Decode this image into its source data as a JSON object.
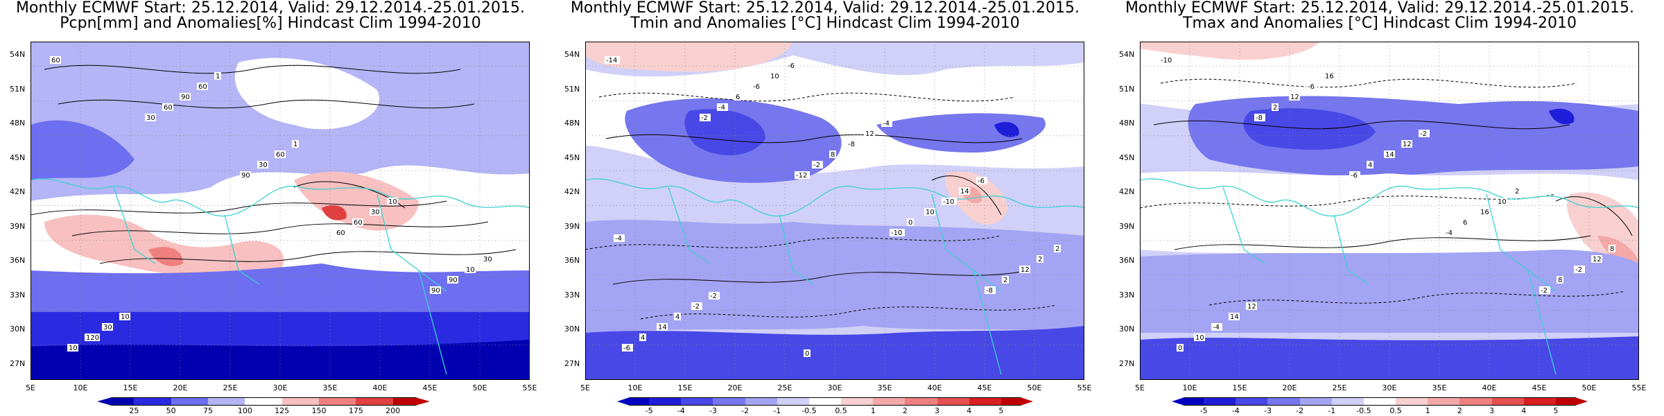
{
  "panels": [
    {
      "title_line1": "Monthly ECMWF Start: 25.12.2014, Valid: 29.12.2014.-25.01.2015.",
      "title_line2": "Pcpn[mm] and Anomalies[%] Hindcast Clim 1994-2010",
      "colorbar_labels": [
        "25",
        "50",
        "75",
        "100",
        "125",
        "150",
        "175",
        "200"
      ],
      "colorbar_colors": [
        "#0000b0",
        "#2a2ae0",
        "#6e6ef0",
        "#b4b4f6",
        "#ffffff",
        "#f8c0c0",
        "#f08080",
        "#e04040",
        "#c00000"
      ],
      "contour_labels": [
        "60",
        "30",
        "90",
        "60",
        "90",
        "10",
        "60",
        "30",
        "60",
        "90",
        "120",
        "90",
        "60",
        "30",
        "10",
        "30",
        "60",
        "1",
        "10",
        "30",
        "10",
        "1"
      ]
    },
    {
      "title_line1": "Monthly ECMWF Start: 25.12.2014, Valid: 29.12.2014.-25.01.2015.",
      "title_line2": "Tmin and Anomalies [°C] Hindcast Clim 1994-2010",
      "colorbar_labels": [
        "-5",
        "-4",
        "-3",
        "-2",
        "-1",
        "-0.5",
        "0.5",
        "1",
        "2",
        "3",
        "4",
        "5"
      ],
      "colorbar_colors": [
        "#0000c0",
        "#1e1ed8",
        "#4848e6",
        "#7676ee",
        "#a4a4f4",
        "#d0d0f8",
        "#ffffff",
        "#f8d0d0",
        "#f4a8a8",
        "#ee8080",
        "#e65050",
        "#d82020",
        "#c00000"
      ],
      "contour_labels": [
        "-14",
        "-2",
        "-12",
        "-10",
        "-8",
        "-6",
        "-4",
        "-2",
        "0",
        "2",
        "4",
        "6",
        "8",
        "10",
        "12",
        "14",
        "-6",
        "-8",
        "-10",
        "2",
        "4",
        "10",
        "12",
        "14",
        "2",
        "-2",
        "-6",
        "-4",
        "-6",
        "-4",
        "-2",
        "0"
      ]
    },
    {
      "title_line1": "Monthly ECMWF Start: 25.12.2014, Valid: 29.12.2014.-25.01.2015.",
      "title_line2": "Tmax and Anomalies [°C] Hindcast Clim 1994-2010",
      "colorbar_labels": [
        "-5",
        "-4",
        "-3",
        "-2",
        "-1",
        "-0.5",
        "0.5",
        "1",
        "2",
        "3",
        "4",
        "5"
      ],
      "colorbar_colors": [
        "#0000c0",
        "#1e1ed8",
        "#4848e6",
        "#7676ee",
        "#a4a4f4",
        "#d0d0f8",
        "#ffffff",
        "#f8d0d0",
        "#f4a8a8",
        "#ee8080",
        "#e65050",
        "#d82020",
        "#c00000"
      ],
      "contour_labels": [
        "-10",
        "-8",
        "-6",
        "-4",
        "-2",
        "0",
        "2",
        "4",
        "6",
        "8",
        "10",
        "12",
        "14",
        "16",
        "-2",
        "-4",
        "-6",
        "12",
        "10",
        "12",
        "14",
        "16",
        "-2",
        "2",
        "8",
        "12"
      ]
    }
  ],
  "axes": {
    "lat_labels": [
      "54N",
      "51N",
      "48N",
      "45N",
      "42N",
      "39N",
      "36N",
      "33N",
      "30N",
      "27N"
    ],
    "lon_labels": [
      "5E",
      "10E",
      "15E",
      "20E",
      "25E",
      "30E",
      "35E",
      "40E",
      "45E",
      "50E",
      "55E"
    ]
  },
  "colors": {
    "coastline": "#3cd2d2",
    "contour": "#000000",
    "grid": "#888888"
  }
}
